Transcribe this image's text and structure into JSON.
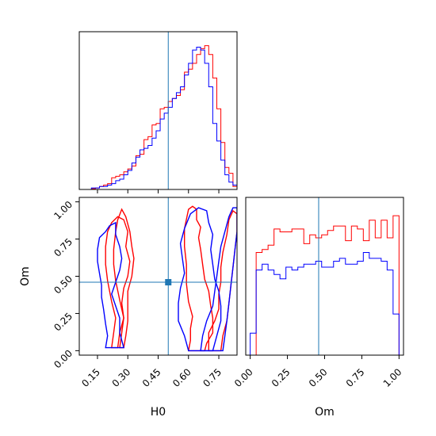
{
  "colors": {
    "truth": "#1f77b4",
    "series_a": "#ff0000",
    "series_b": "#0000ff"
  },
  "truth": {
    "H0": 0.5,
    "Om": 0.46
  },
  "chart_data": [
    {
      "type": "histogram",
      "panel": "H0 marginal",
      "xlim": [
        0.06,
        0.84
      ],
      "xticks": [
        0.15,
        0.3,
        0.45,
        0.6,
        0.75
      ],
      "truth": 0.5,
      "series": [
        {
          "color": "red",
          "edges": [
            0.12,
            0.14,
            0.16,
            0.18,
            0.2,
            0.22,
            0.24,
            0.26,
            0.28,
            0.3,
            0.32,
            0.34,
            0.36,
            0.38,
            0.4,
            0.42,
            0.44,
            0.46,
            0.48,
            0.5,
            0.52,
            0.54,
            0.56,
            0.58,
            0.6,
            0.62,
            0.64,
            0.66,
            0.68,
            0.7,
            0.72,
            0.74,
            0.76,
            0.78,
            0.8,
            0.82,
            0.84
          ],
          "counts": [
            0.005,
            0.01,
            0.02,
            0.03,
            0.04,
            0.08,
            0.09,
            0.1,
            0.12,
            0.14,
            0.16,
            0.23,
            0.24,
            0.34,
            0.36,
            0.44,
            0.45,
            0.55,
            0.56,
            0.6,
            0.62,
            0.64,
            0.68,
            0.8,
            0.82,
            0.86,
            0.92,
            0.96,
            0.98,
            0.92,
            0.76,
            0.55,
            0.32,
            0.15,
            0.11,
            0.02
          ]
        },
        {
          "color": "blue",
          "edges": [
            0.12,
            0.14,
            0.16,
            0.18,
            0.2,
            0.22,
            0.24,
            0.26,
            0.28,
            0.3,
            0.32,
            0.34,
            0.36,
            0.38,
            0.4,
            0.42,
            0.44,
            0.46,
            0.48,
            0.5,
            0.52,
            0.54,
            0.56,
            0.58,
            0.6,
            0.62,
            0.64,
            0.66,
            0.68,
            0.7,
            0.72,
            0.74,
            0.76,
            0.78,
            0.8,
            0.82,
            0.84
          ],
          "counts": [
            0.01,
            0.01,
            0.02,
            0.02,
            0.03,
            0.04,
            0.06,
            0.07,
            0.1,
            0.13,
            0.18,
            0.22,
            0.27,
            0.28,
            0.3,
            0.35,
            0.4,
            0.48,
            0.52,
            0.56,
            0.62,
            0.66,
            0.7,
            0.78,
            0.86,
            0.95,
            0.97,
            0.95,
            0.86,
            0.7,
            0.45,
            0.33,
            0.2,
            0.1,
            0.05,
            0.03
          ]
        }
      ]
    },
    {
      "type": "contour",
      "panel": "H0 vs Om",
      "xlabel": "H0",
      "ylabel": "Om",
      "xlim": [
        0.06,
        0.84
      ],
      "ylim": [
        -0.03,
        1.03
      ],
      "xticks": [
        0.15,
        0.3,
        0.45,
        0.6,
        0.75
      ],
      "yticks": [
        0.0,
        0.25,
        0.5,
        0.75,
        1.0
      ],
      "truth": [
        0.5,
        0.46
      ],
      "series": [
        {
          "color": "red",
          "contours": [
            [
              [
                0.22,
                0.02
              ],
              [
                0.23,
                0.12
              ],
              [
                0.24,
                0.22
              ],
              [
                0.22,
                0.33
              ],
              [
                0.2,
                0.47
              ],
              [
                0.19,
                0.58
              ],
              [
                0.19,
                0.7
              ],
              [
                0.2,
                0.8
              ],
              [
                0.22,
                0.86
              ],
              [
                0.25,
                0.9
              ],
              [
                0.28,
                0.88
              ],
              [
                0.3,
                0.8
              ],
              [
                0.29,
                0.7
              ],
              [
                0.31,
                0.6
              ],
              [
                0.3,
                0.5
              ],
              [
                0.28,
                0.42
              ],
              [
                0.27,
                0.32
              ],
              [
                0.28,
                0.22
              ],
              [
                0.26,
                0.12
              ],
              [
                0.25,
                0.02
              ]
            ],
            [
              [
                0.26,
                0.02
              ],
              [
                0.27,
                0.12
              ],
              [
                0.28,
                0.22
              ],
              [
                0.26,
                0.34
              ],
              [
                0.24,
                0.47
              ],
              [
                0.23,
                0.58
              ],
              [
                0.23,
                0.68
              ],
              [
                0.24,
                0.8
              ],
              [
                0.25,
                0.88
              ],
              [
                0.27,
                0.95
              ],
              [
                0.29,
                0.9
              ],
              [
                0.31,
                0.8
              ],
              [
                0.32,
                0.7
              ],
              [
                0.33,
                0.62
              ],
              [
                0.32,
                0.5
              ],
              [
                0.3,
                0.4
              ],
              [
                0.3,
                0.3
              ],
              [
                0.3,
                0.2
              ],
              [
                0.29,
                0.1
              ],
              [
                0.28,
                0.02
              ]
            ],
            [
              [
                0.6,
                0.0
              ],
              [
                0.61,
                0.07
              ],
              [
                0.61,
                0.15
              ],
              [
                0.62,
                0.23
              ],
              [
                0.6,
                0.33
              ],
              [
                0.59,
                0.45
              ],
              [
                0.59,
                0.58
              ],
              [
                0.58,
                0.7
              ],
              [
                0.58,
                0.82
              ],
              [
                0.6,
                0.95
              ],
              [
                0.62,
                0.97
              ],
              [
                0.64,
                0.95
              ],
              [
                0.64,
                0.88
              ],
              [
                0.66,
                0.83
              ],
              [
                0.65,
                0.76
              ],
              [
                0.66,
                0.68
              ],
              [
                0.67,
                0.58
              ],
              [
                0.68,
                0.48
              ],
              [
                0.7,
                0.4
              ],
              [
                0.71,
                0.3
              ],
              [
                0.72,
                0.22
              ],
              [
                0.72,
                0.12
              ],
              [
                0.69,
                0.05
              ],
              [
                0.68,
                0.0
              ]
            ],
            [
              [
                0.7,
                0.0
              ],
              [
                0.7,
                0.12
              ],
              [
                0.73,
                0.2
              ],
              [
                0.75,
                0.28
              ],
              [
                0.75,
                0.38
              ],
              [
                0.76,
                0.46
              ],
              [
                0.76,
                0.56
              ],
              [
                0.77,
                0.66
              ],
              [
                0.79,
                0.78
              ],
              [
                0.8,
                0.88
              ],
              [
                0.82,
                0.94
              ],
              [
                0.84,
                0.92
              ],
              [
                0.84,
                0.8
              ],
              [
                0.83,
                0.68
              ],
              [
                0.82,
                0.56
              ],
              [
                0.81,
                0.44
              ],
              [
                0.8,
                0.32
              ],
              [
                0.79,
                0.2
              ],
              [
                0.77,
                0.1
              ],
              [
                0.76,
                0.0
              ]
            ]
          ]
        },
        {
          "color": "blue",
          "contours": [
            [
              [
                0.19,
                0.02
              ],
              [
                0.2,
                0.1
              ],
              [
                0.19,
                0.18
              ],
              [
                0.18,
                0.28
              ],
              [
                0.17,
                0.36
              ],
              [
                0.17,
                0.44
              ],
              [
                0.16,
                0.52
              ],
              [
                0.15,
                0.6
              ],
              [
                0.15,
                0.68
              ],
              [
                0.16,
                0.76
              ],
              [
                0.19,
                0.8
              ],
              [
                0.21,
                0.84
              ],
              [
                0.24,
                0.86
              ],
              [
                0.24,
                0.78
              ],
              [
                0.26,
                0.7
              ],
              [
                0.27,
                0.62
              ],
              [
                0.26,
                0.54
              ],
              [
                0.24,
                0.46
              ],
              [
                0.22,
                0.38
              ],
              [
                0.24,
                0.3
              ],
              [
                0.26,
                0.22
              ],
              [
                0.26,
                0.12
              ],
              [
                0.28,
                0.02
              ]
            ],
            [
              [
                0.6,
                0.0
              ],
              [
                0.58,
                0.1
              ],
              [
                0.55,
                0.2
              ],
              [
                0.55,
                0.32
              ],
              [
                0.56,
                0.42
              ],
              [
                0.58,
                0.52
              ],
              [
                0.57,
                0.62
              ],
              [
                0.56,
                0.72
              ],
              [
                0.58,
                0.82
              ],
              [
                0.61,
                0.92
              ],
              [
                0.65,
                0.96
              ],
              [
                0.69,
                0.94
              ],
              [
                0.7,
                0.86
              ],
              [
                0.72,
                0.78
              ],
              [
                0.71,
                0.68
              ],
              [
                0.72,
                0.58
              ],
              [
                0.73,
                0.48
              ],
              [
                0.75,
                0.4
              ],
              [
                0.76,
                0.3
              ],
              [
                0.76,
                0.2
              ],
              [
                0.74,
                0.1
              ],
              [
                0.72,
                0.0
              ]
            ],
            [
              [
                0.66,
                0.0
              ],
              [
                0.67,
                0.1
              ],
              [
                0.69,
                0.2
              ],
              [
                0.72,
                0.3
              ],
              [
                0.73,
                0.4
              ],
              [
                0.74,
                0.5
              ],
              [
                0.75,
                0.6
              ],
              [
                0.76,
                0.7
              ],
              [
                0.78,
                0.8
              ],
              [
                0.8,
                0.9
              ],
              [
                0.82,
                0.96
              ],
              [
                0.84,
                0.96
              ],
              [
                0.84,
                0.8
              ],
              [
                0.83,
                0.68
              ],
              [
                0.82,
                0.56
              ],
              [
                0.81,
                0.44
              ],
              [
                0.8,
                0.32
              ],
              [
                0.79,
                0.2
              ],
              [
                0.78,
                0.1
              ],
              [
                0.77,
                0.0
              ]
            ]
          ]
        }
      ]
    },
    {
      "type": "histogram",
      "panel": "Om marginal",
      "xlabel": "Om",
      "xlim": [
        -0.03,
        1.03
      ],
      "xticks": [
        0.0,
        0.25,
        0.5,
        0.75,
        1.0
      ],
      "truth": 0.46,
      "series": [
        {
          "color": "red",
          "edges": [
            0.0,
            0.04,
            0.08,
            0.12,
            0.16,
            0.2,
            0.24,
            0.28,
            0.32,
            0.36,
            0.4,
            0.44,
            0.48,
            0.52,
            0.56,
            0.6,
            0.64,
            0.68,
            0.72,
            0.76,
            0.8,
            0.84,
            0.88,
            0.92,
            0.96,
            1.0
          ],
          "counts": [
            0.0,
            0.7,
            0.72,
            0.75,
            0.86,
            0.84,
            0.84,
            0.86,
            0.86,
            0.76,
            0.82,
            0.8,
            0.82,
            0.85,
            0.88,
            0.88,
            0.78,
            0.88,
            0.86,
            0.78,
            0.92,
            0.8,
            0.92,
            0.8,
            0.95
          ]
        },
        {
          "color": "blue",
          "edges": [
            0.0,
            0.04,
            0.08,
            0.12,
            0.16,
            0.2,
            0.24,
            0.28,
            0.32,
            0.36,
            0.4,
            0.44,
            0.48,
            0.52,
            0.56,
            0.6,
            0.64,
            0.68,
            0.72,
            0.76,
            0.8,
            0.84,
            0.88,
            0.92,
            0.96,
            1.0
          ],
          "counts": [
            0.15,
            0.58,
            0.62,
            0.58,
            0.55,
            0.52,
            0.6,
            0.58,
            0.6,
            0.62,
            0.62,
            0.64,
            0.6,
            0.6,
            0.64,
            0.66,
            0.62,
            0.62,
            0.64,
            0.7,
            0.66,
            0.66,
            0.64,
            0.58,
            0.28
          ]
        }
      ]
    }
  ]
}
